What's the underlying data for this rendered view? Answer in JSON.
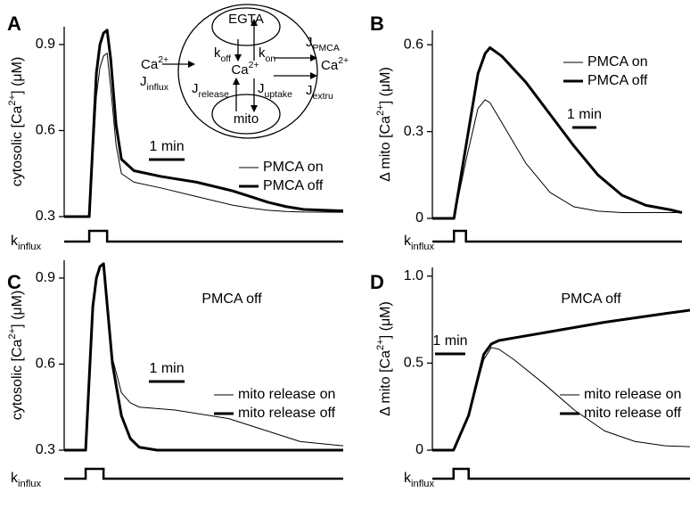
{
  "chart_data": [
    {
      "type": "line",
      "panel": "A",
      "ylabel": [
        {
          "text": "cytosolic [Ca"
        },
        {
          "sup": "2+"
        },
        {
          "text": "] (μM)"
        }
      ],
      "x": [
        -0.7,
        0,
        0.1,
        0.2,
        0.3,
        0.4,
        0.5,
        0.6,
        0.75,
        0.9,
        1.25,
        2,
        3,
        4,
        4.5,
        5,
        5.5,
        6,
        7.1
      ],
      "xlim": [
        -0.7,
        7.1
      ],
      "ylim": [
        0.3,
        0.962
      ],
      "yticks": [
        0.3,
        0.6,
        0.9
      ],
      "series": [
        {
          "name": "PMCA on",
          "color": "#000000",
          "line_width": 1,
          "values": [
            0.3,
            0.3,
            0.5,
            0.72,
            0.82,
            0.86,
            0.87,
            0.75,
            0.55,
            0.45,
            0.42,
            0.4,
            0.37,
            0.34,
            0.33,
            0.322,
            0.318,
            0.316,
            0.315
          ]
        },
        {
          "name": "PMCA off",
          "color": "#000000",
          "line_width": 3,
          "values": [
            0.3,
            0.3,
            0.55,
            0.8,
            0.9,
            0.94,
            0.95,
            0.85,
            0.62,
            0.5,
            0.46,
            0.44,
            0.42,
            0.39,
            0.37,
            0.35,
            0.335,
            0.325,
            0.32
          ]
        }
      ],
      "scalebar": {
        "label": "1 min",
        "length": 1
      },
      "stimulus": {
        "label": [
          {
            "text": "k"
          },
          {
            "sub": "influx"
          }
        ],
        "on": [
          0,
          0.5
        ]
      }
    },
    {
      "type": "line",
      "panel": "B",
      "ylabel": [
        {
          "text": "Δ mito [Ca"
        },
        {
          "sup": "2+"
        },
        {
          "text": "] (μM)"
        }
      ],
      "x": [
        -0.9,
        0,
        0.5,
        1.0,
        1.3,
        1.5,
        2,
        3,
        4,
        5,
        6,
        7,
        8,
        9,
        9.5
      ],
      "xlim": [
        -0.9,
        9.5
      ],
      "ylim": [
        0,
        0.65
      ],
      "yticks": [
        0,
        0.3,
        0.6
      ],
      "series": [
        {
          "name": "PMCA on",
          "color": "#000000",
          "line_width": 1,
          "values": [
            0,
            0,
            0.2,
            0.38,
            0.41,
            0.4,
            0.33,
            0.19,
            0.09,
            0.04,
            0.025,
            0.02,
            0.02,
            0.02,
            0.02
          ]
        },
        {
          "name": "PMCA off",
          "color": "#000000",
          "line_width": 3,
          "values": [
            0,
            0,
            0.25,
            0.5,
            0.57,
            0.59,
            0.56,
            0.47,
            0.36,
            0.25,
            0.15,
            0.08,
            0.045,
            0.03,
            0.02
          ]
        }
      ],
      "scalebar": {
        "label": "1 min",
        "length": 1
      },
      "stimulus": {
        "label": [
          {
            "text": "k"
          },
          {
            "sub": "influx"
          }
        ],
        "on": [
          0,
          0.5
        ]
      }
    },
    {
      "type": "line",
      "panel": "C",
      "ylabel": [
        {
          "text": "cytosolic [Ca"
        },
        {
          "sup": "2+"
        },
        {
          "text": "] (μM)"
        }
      ],
      "annotation": "PMCA off",
      "x": [
        -0.6,
        0,
        0.1,
        0.2,
        0.3,
        0.4,
        0.5,
        0.75,
        1.0,
        1.25,
        1.5,
        2,
        2.5,
        4,
        5,
        6,
        7.2
      ],
      "xlim": [
        -0.6,
        7.2
      ],
      "ylim": [
        0.3,
        0.962
      ],
      "yticks": [
        0.3,
        0.6,
        0.9
      ],
      "series": [
        {
          "name": "mito release on",
          "color": "#000000",
          "line_width": 1,
          "values": [
            0.3,
            0.3,
            0.55,
            0.8,
            0.9,
            0.94,
            0.95,
            0.62,
            0.5,
            0.465,
            0.45,
            0.445,
            0.44,
            0.41,
            0.37,
            0.33,
            0.315
          ]
        },
        {
          "name": "mito release off",
          "color": "#000000",
          "line_width": 3,
          "values": [
            0.3,
            0.3,
            0.55,
            0.8,
            0.9,
            0.94,
            0.95,
            0.6,
            0.42,
            0.34,
            0.31,
            0.3,
            0.3,
            0.3,
            0.3,
            0.3,
            0.3
          ]
        }
      ],
      "scalebar": {
        "label": "1 min",
        "length": 1
      },
      "stimulus": {
        "label": [
          {
            "text": "k"
          },
          {
            "sub": "influx"
          }
        ],
        "on": [
          0,
          0.5
        ]
      }
    },
    {
      "type": "line",
      "panel": "D",
      "ylabel": [
        {
          "text": "Δ mito [Ca"
        },
        {
          "sup": "2+"
        },
        {
          "text": "] (μM)"
        }
      ],
      "annotation": "PMCA off",
      "x": [
        -0.7,
        0,
        0.5,
        1.0,
        1.25,
        1.5,
        2,
        3,
        4,
        5,
        6,
        7,
        7.85
      ],
      "xlim": [
        -0.7,
        7.85
      ],
      "ylim": [
        0,
        1.05
      ],
      "yticks": [
        0,
        0.5,
        {
          "value": 1,
          "label": "1.0"
        }
      ],
      "series": [
        {
          "name": "mito release on",
          "color": "#000000",
          "line_width": 1,
          "values": [
            0,
            0,
            0.2,
            0.52,
            0.59,
            0.58,
            0.52,
            0.38,
            0.23,
            0.11,
            0.05,
            0.025,
            0.02
          ]
        },
        {
          "name": "mito release off",
          "color": "#000000",
          "line_width": 3,
          "values": [
            0,
            0,
            0.2,
            0.55,
            0.61,
            0.63,
            0.645,
            0.675,
            0.705,
            0.735,
            0.76,
            0.785,
            0.805
          ]
        }
      ],
      "scalebar": {
        "label": "1 min",
        "length": 1
      },
      "stimulus": {
        "label": [
          {
            "text": "k"
          },
          {
            "sub": "influx"
          }
        ],
        "on": [
          0,
          0.5
        ]
      }
    }
  ],
  "inset": {
    "egta": "EGTA",
    "mito": "mito",
    "ca_center": [
      {
        "text": "Ca"
      },
      {
        "sup": "2+"
      }
    ],
    "ca_left": [
      {
        "text": "Ca"
      },
      {
        "sup": "2+"
      }
    ],
    "ca_right": [
      {
        "text": "Ca"
      },
      {
        "sup": "2+"
      }
    ],
    "k_off": [
      {
        "text": "k"
      },
      {
        "sub": "off"
      }
    ],
    "k_on": [
      {
        "text": "k"
      },
      {
        "sub": "on"
      }
    ],
    "j_release": [
      {
        "text": "J"
      },
      {
        "sub": "release"
      }
    ],
    "j_uptake": [
      {
        "text": "J"
      },
      {
        "sub": "uptake"
      }
    ],
    "j_influx": [
      {
        "text": "J"
      },
      {
        "sub": "influx"
      }
    ],
    "j_pmca": [
      {
        "text": "J"
      },
      {
        "sub": "PMCA"
      }
    ],
    "j_extru": [
      {
        "text": "J"
      },
      {
        "sub": "extru"
      }
    ]
  }
}
